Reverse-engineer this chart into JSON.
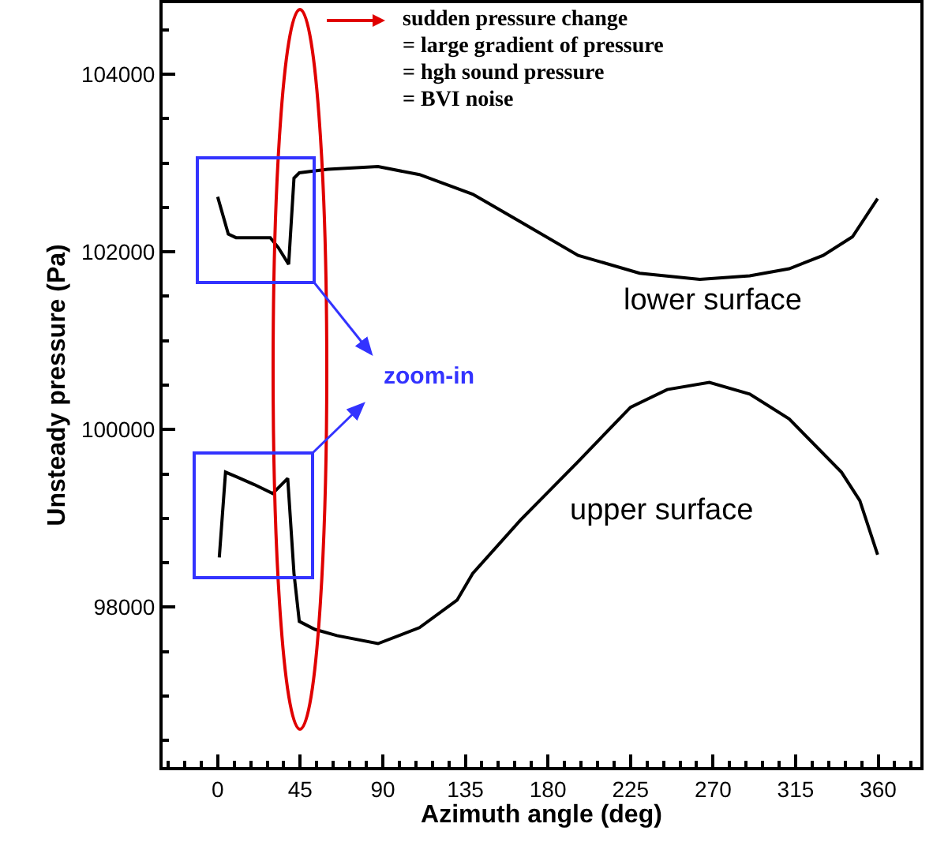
{
  "chart_data": {
    "type": "line",
    "xlabel": "Azimuth angle (deg)",
    "ylabel": "Unsteady pressure (Pa)",
    "xlim": [
      -30,
      383
    ],
    "xticks": [
      0,
      45,
      90,
      135,
      180,
      225,
      270,
      315,
      360
    ],
    "ylim": [
      96200,
      104800
    ],
    "yticks": [
      98000,
      100000,
      102000,
      104000
    ],
    "grid": false,
    "legend": false,
    "marker": "none",
    "line_style": "solid",
    "series": [
      {
        "name": "lower surface",
        "color": "#000000",
        "x": [
          0,
          5.8,
          10,
          20,
          28.7,
          33,
          38.7,
          41.6,
          44.5,
          60,
          87.4,
          110,
          139,
          165,
          196.5,
          230,
          262.8,
          290,
          311.5,
          330,
          346,
          359.7
        ],
        "values": [
          102620,
          102200,
          102160,
          102160,
          102160,
          102050,
          101860,
          102830,
          102890,
          102930,
          102960,
          102870,
          102650,
          102340,
          101960,
          101760,
          101690,
          101730,
          101810,
          101960,
          102170,
          102600
        ]
      },
      {
        "name": "upper surface",
        "color": "#000000",
        "x": [
          0.9,
          4.3,
          10,
          20,
          30,
          38.2,
          41.6,
          44.5,
          53,
          65,
          87.4,
          110,
          130.5,
          139,
          165,
          196.5,
          225,
          245,
          268,
          290,
          311.5,
          340,
          350,
          359.7
        ],
        "values": [
          98560,
          99520,
          99470,
          99380,
          99280,
          99450,
          98380,
          97840,
          97750,
          97680,
          97590,
          97770,
          98080,
          98380,
          98980,
          99640,
          100250,
          100450,
          100530,
          100400,
          100120,
          99520,
          99200,
          98590
        ]
      }
    ],
    "annotations": [
      "sudden pressure change",
      "= large gradient of pressure",
      "= hgh sound pressure",
      "= BVI noise",
      "zoom-in"
    ]
  }
}
